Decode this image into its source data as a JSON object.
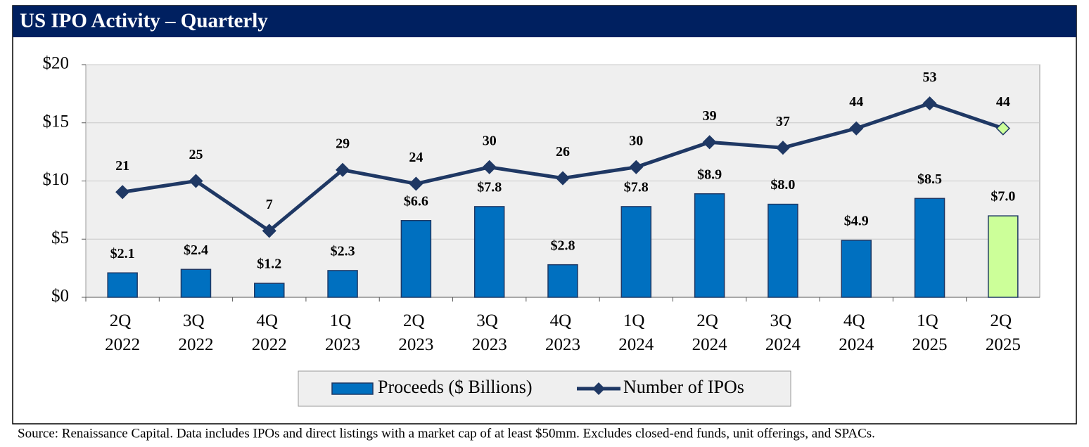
{
  "chart_data": {
    "type": "bar_line",
    "title": "US IPO Activity – Quarterly",
    "source": "Source: Renaissance Capital. Data includes IPOs and direct listings with a market cap of at least $50mm. Excludes closed-end funds, unit offerings, and SPACs.",
    "categories": [
      "2Q 2022",
      "3Q 2022",
      "4Q 2022",
      "1Q 2023",
      "2Q 2023",
      "3Q 2023",
      "4Q 2023",
      "1Q 2024",
      "2Q 2024",
      "3Q 2024",
      "4Q 2024",
      "1Q 2025",
      "2Q 2025"
    ],
    "series": [
      {
        "name": "Proceeds ($ Billions)",
        "type": "bar",
        "color": "#0070c0",
        "colors": [
          "#0070c0",
          "#0070c0",
          "#0070c0",
          "#0070c0",
          "#0070c0",
          "#0070c0",
          "#0070c0",
          "#0070c0",
          "#0070c0",
          "#0070c0",
          "#0070c0",
          "#0070c0",
          "#ccff99"
        ],
        "values": [
          2.1,
          2.4,
          1.2,
          2.3,
          6.6,
          7.8,
          2.8,
          7.8,
          8.9,
          8.0,
          4.9,
          8.5,
          7.0
        ],
        "value_labels": [
          "$2.1",
          "$2.4",
          "$1.2",
          "$2.3",
          "$6.6",
          "$7.8",
          "$2.8",
          "$7.8",
          "$8.9",
          "$8.0",
          "$4.9",
          "$8.5",
          "$7.0"
        ]
      },
      {
        "name": "Number of IPOs",
        "type": "line",
        "axis": "y2",
        "color": "#1f3864",
        "marker_colors": [
          "#1f3864",
          "#1f3864",
          "#1f3864",
          "#1f3864",
          "#1f3864",
          "#1f3864",
          "#1f3864",
          "#1f3864",
          "#1f3864",
          "#1f3864",
          "#1f3864",
          "#1f3864",
          "#ccff99"
        ],
        "values": [
          21,
          25,
          7,
          29,
          24,
          30,
          26,
          30,
          39,
          37,
          44,
          53,
          44
        ]
      }
    ],
    "ylim": [
      0,
      20
    ],
    "yticks": [
      {
        "value": 0,
        "label": "$0"
      },
      {
        "value": 5,
        "label": "$5"
      },
      {
        "value": 10,
        "label": "$10"
      },
      {
        "value": 15,
        "label": "$15"
      },
      {
        "value": 20,
        "label": "$20"
      }
    ],
    "y2lim": [
      -17,
      67
    ],
    "grid": true,
    "legend": "bottom"
  }
}
